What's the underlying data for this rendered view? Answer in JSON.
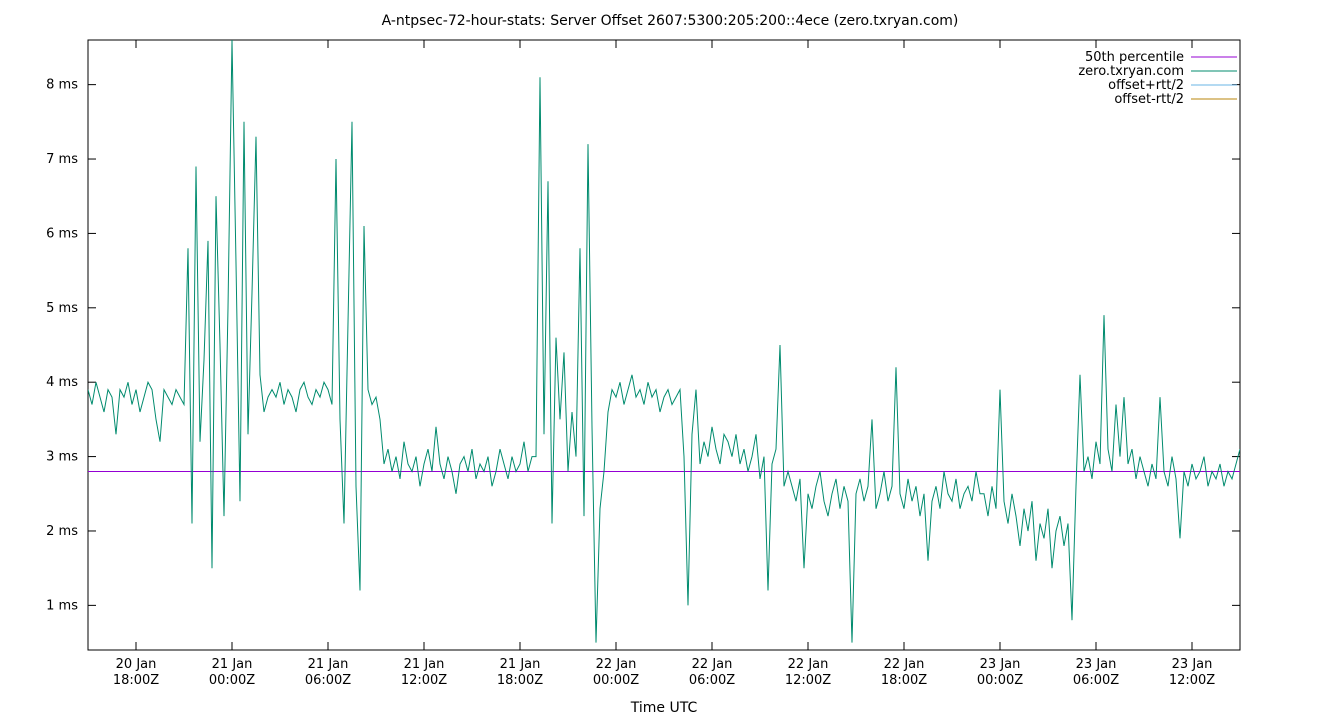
{
  "title": "A-ntpsec-72-hour-stats: Server Offset 2607:5300:205:200::4ece (zero.txryan.com)",
  "chart_data": {
    "type": "line",
    "title": "A-ntpsec-72-hour-stats: Server Offset 2607:5300:205:200::4ece (zero.txryan.com)",
    "xlabel": "Time UTC",
    "ylabel": "",
    "grid": false,
    "legend_position": "top-right-inside",
    "ylim": [
      0.4,
      8.6
    ],
    "xlim_hours": [
      0,
      72
    ],
    "x_start_label": "20 Jan 15:00Z",
    "sample_interval_hours": 0.25,
    "y_ticks": [
      {
        "value": 1,
        "label": "1 ms"
      },
      {
        "value": 2,
        "label": "2 ms"
      },
      {
        "value": 3,
        "label": "3 ms"
      },
      {
        "value": 4,
        "label": "4 ms"
      },
      {
        "value": 5,
        "label": "5 ms"
      },
      {
        "value": 6,
        "label": "6 ms"
      },
      {
        "value": 7,
        "label": "7 ms"
      },
      {
        "value": 8,
        "label": "8 ms"
      }
    ],
    "x_ticks": [
      {
        "hour": 3,
        "line1": "20 Jan",
        "line2": "18:00Z"
      },
      {
        "hour": 9,
        "line1": "21 Jan",
        "line2": "00:00Z"
      },
      {
        "hour": 15,
        "line1": "21 Jan",
        "line2": "06:00Z"
      },
      {
        "hour": 21,
        "line1": "21 Jan",
        "line2": "12:00Z"
      },
      {
        "hour": 27,
        "line1": "21 Jan",
        "line2": "18:00Z"
      },
      {
        "hour": 33,
        "line1": "22 Jan",
        "line2": "00:00Z"
      },
      {
        "hour": 39,
        "line1": "22 Jan",
        "line2": "06:00Z"
      },
      {
        "hour": 45,
        "line1": "22 Jan",
        "line2": "12:00Z"
      },
      {
        "hour": 51,
        "line1": "22 Jan",
        "line2": "18:00Z"
      },
      {
        "hour": 57,
        "line1": "23 Jan",
        "line2": "00:00Z"
      },
      {
        "hour": 63,
        "line1": "23 Jan",
        "line2": "06:00Z"
      },
      {
        "hour": 69,
        "line1": "23 Jan",
        "line2": "12:00Z"
      }
    ],
    "series": [
      {
        "name": "50th percentile",
        "color": "#9400d3",
        "type": "hline",
        "value": 2.8
      },
      {
        "name": "zero.txryan.com",
        "color": "#008b6e",
        "type": "line",
        "values": [
          3.9,
          3.7,
          4.0,
          3.8,
          3.6,
          3.9,
          3.8,
          3.3,
          3.9,
          3.8,
          4.0,
          3.7,
          3.9,
          3.6,
          3.8,
          4.0,
          3.9,
          3.5,
          3.2,
          3.9,
          3.8,
          3.7,
          3.9,
          3.8,
          3.7,
          5.8,
          2.1,
          6.9,
          3.2,
          4.3,
          5.9,
          1.5,
          6.5,
          4.5,
          2.2,
          5.0,
          8.6,
          5.6,
          2.4,
          7.5,
          3.3,
          5.2,
          7.3,
          4.1,
          3.6,
          3.8,
          3.9,
          3.8,
          4.0,
          3.7,
          3.9,
          3.8,
          3.6,
          3.9,
          4.0,
          3.8,
          3.7,
          3.9,
          3.8,
          4.0,
          3.9,
          3.7,
          7.0,
          3.5,
          2.1,
          4.8,
          7.5,
          2.6,
          1.2,
          6.1,
          3.9,
          3.7,
          3.8,
          3.5,
          2.9,
          3.1,
          2.8,
          3.0,
          2.7,
          3.2,
          2.9,
          2.8,
          3.0,
          2.6,
          2.9,
          3.1,
          2.8,
          3.4,
          2.9,
          2.7,
          3.0,
          2.8,
          2.5,
          2.9,
          3.0,
          2.8,
          3.1,
          2.7,
          2.9,
          2.8,
          3.0,
          2.6,
          2.8,
          3.1,
          2.9,
          2.7,
          3.0,
          2.8,
          2.9,
          3.2,
          2.8,
          3.0,
          3.0,
          8.1,
          3.3,
          6.7,
          2.1,
          4.6,
          3.5,
          4.4,
          2.8,
          3.6,
          3.0,
          5.8,
          2.2,
          7.2,
          3.4,
          0.5,
          2.3,
          2.8,
          3.6,
          3.9,
          3.8,
          4.0,
          3.7,
          3.9,
          4.1,
          3.8,
          3.9,
          3.7,
          4.0,
          3.8,
          3.9,
          3.6,
          3.8,
          3.9,
          3.7,
          3.8,
          3.9,
          3.0,
          1.0,
          3.3,
          3.9,
          2.9,
          3.2,
          3.0,
          3.4,
          3.1,
          2.9,
          3.3,
          3.2,
          3.0,
          3.3,
          2.9,
          3.1,
          2.8,
          3.0,
          3.3,
          2.7,
          3.0,
          1.2,
          2.9,
          3.1,
          4.5,
          2.6,
          2.8,
          2.6,
          2.4,
          2.7,
          1.5,
          2.5,
          2.3,
          2.6,
          2.8,
          2.4,
          2.2,
          2.5,
          2.7,
          2.3,
          2.6,
          2.4,
          0.5,
          2.5,
          2.7,
          2.4,
          2.6,
          3.5,
          2.3,
          2.5,
          2.8,
          2.4,
          2.6,
          4.2,
          2.5,
          2.3,
          2.7,
          2.4,
          2.6,
          2.2,
          2.5,
          1.6,
          2.4,
          2.6,
          2.3,
          2.8,
          2.5,
          2.4,
          2.7,
          2.3,
          2.5,
          2.6,
          2.4,
          2.8,
          2.5,
          2.5,
          2.2,
          2.6,
          2.3,
          3.9,
          2.4,
          2.1,
          2.5,
          2.2,
          1.8,
          2.3,
          2.0,
          2.4,
          1.6,
          2.1,
          1.9,
          2.3,
          1.5,
          2.0,
          2.2,
          1.8,
          2.1,
          0.8,
          2.6,
          4.1,
          2.8,
          3.0,
          2.7,
          3.2,
          2.9,
          4.9,
          3.1,
          2.8,
          3.7,
          3.0,
          3.8,
          2.9,
          3.1,
          2.7,
          3.0,
          2.8,
          2.6,
          2.9,
          2.7,
          3.8,
          2.8,
          2.6,
          3.0,
          2.7,
          1.9,
          2.8,
          2.6,
          2.9,
          2.7,
          2.8,
          3.0,
          2.6,
          2.8,
          2.7,
          2.9,
          2.6,
          2.8,
          2.7,
          2.9,
          3.1
        ]
      },
      {
        "name": "offset+rtt/2",
        "color": "#6ab4e6",
        "type": "line",
        "values": []
      },
      {
        "name": "offset-rtt/2",
        "color": "#b8860b",
        "type": "line",
        "values": []
      }
    ],
    "legend": [
      "50th percentile",
      "zero.txryan.com",
      "offset+rtt/2",
      "offset-rtt/2"
    ]
  }
}
